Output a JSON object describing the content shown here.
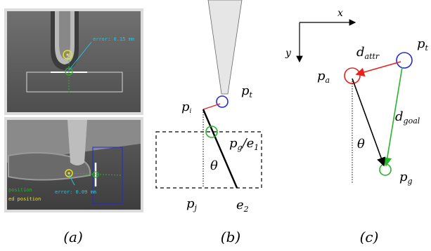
{
  "panel_a": {
    "caption": "(a)",
    "top_photo": {
      "error_text": "error: 0.15 mm"
    },
    "bottom_photo": {
      "error_text": "error: 0.09 mm",
      "legend_line1": "position",
      "legend_line2": "ed position"
    }
  },
  "panel_b": {
    "caption": "(b)",
    "labels": {
      "pi": "p",
      "pi_sub": "i",
      "pt": "p",
      "pt_sub": "t",
      "theta": "θ",
      "pg": "p",
      "pg_sub": "g",
      "pg_slash": "/e",
      "pg_e_sub": "1",
      "pj": "p",
      "pj_sub": "j",
      "e2": "e",
      "e2_sub": "2"
    }
  },
  "panel_c": {
    "caption": "(c)",
    "axes": {
      "x": "x",
      "y": "y"
    },
    "labels": {
      "pa": "p",
      "pa_sub": "a",
      "pt": "p",
      "pt_sub": "t",
      "pg": "p",
      "pg_sub": "g",
      "dattr": "d",
      "dattr_sub": "attr",
      "dgoal": "d",
      "dgoal_sub": "goal",
      "theta": "θ"
    }
  },
  "colors": {
    "red": "#e8221b",
    "blue": "#2129d6",
    "green": "#27b52a",
    "cyan": "#21c8e0",
    "yellow": "#e9e21c"
  }
}
